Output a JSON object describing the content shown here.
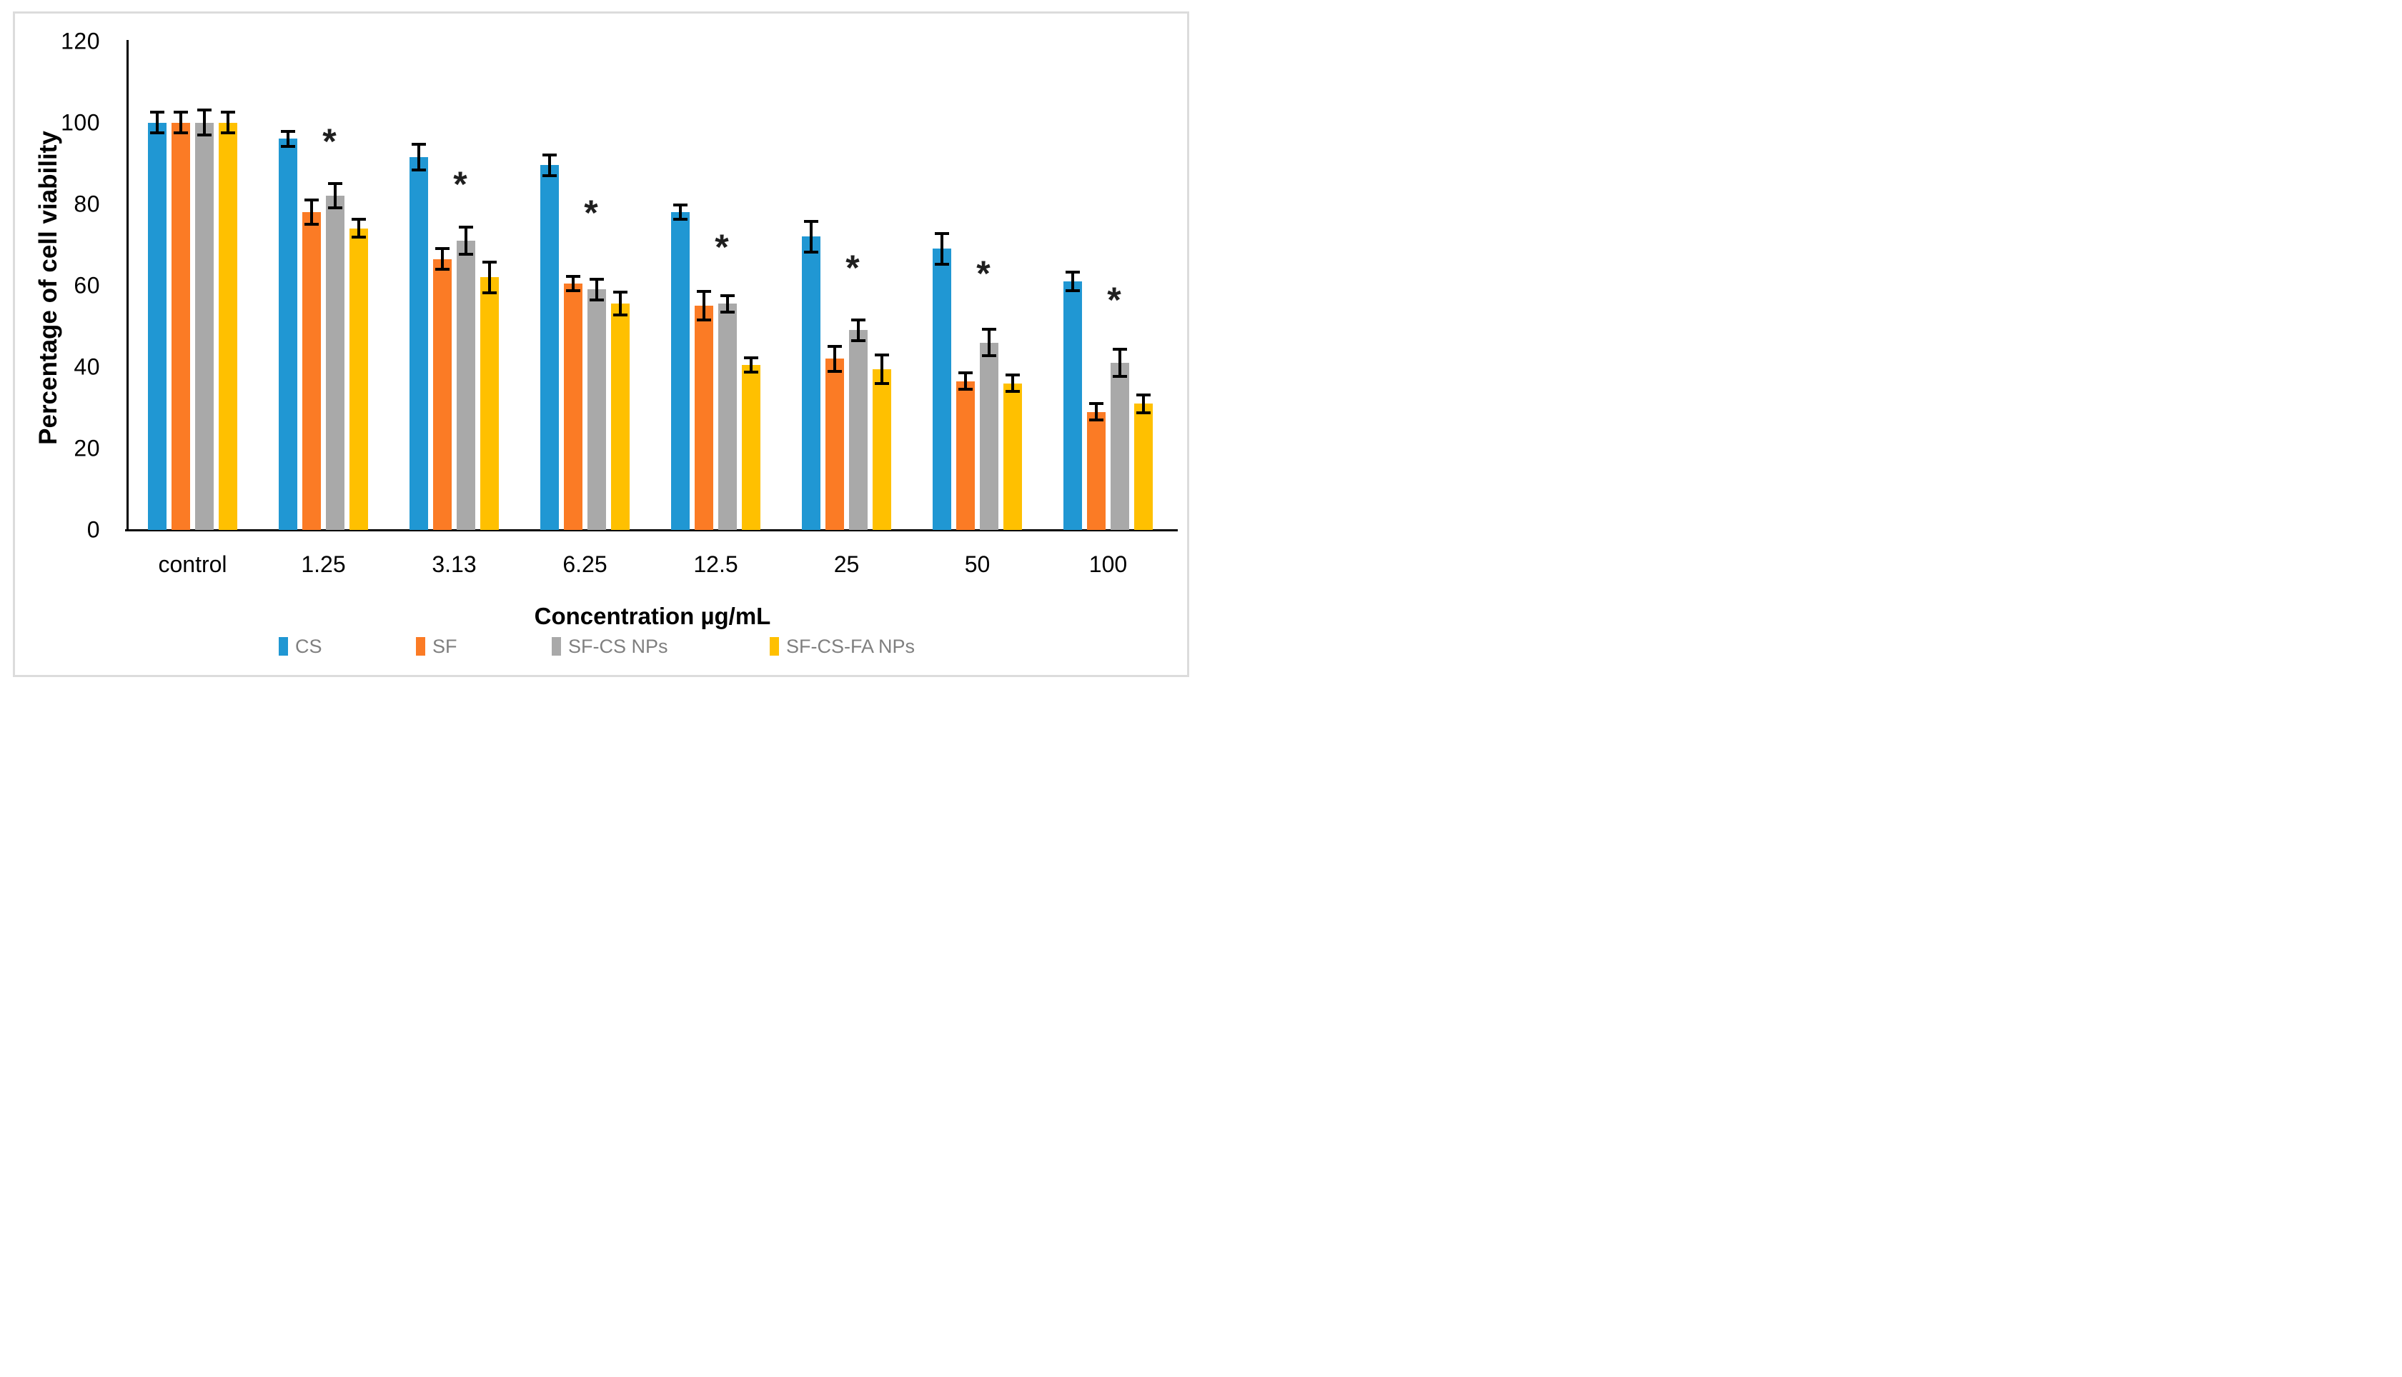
{
  "figure": {
    "background": "#ffffff",
    "border_color": "#dcdcdc",
    "axis_color": "#000000",
    "annotation_color": "#1f1f1f",
    "legend_text_color": "#7f7f7f"
  },
  "chart_data": {
    "type": "bar",
    "title": "",
    "xlabel": "Concentration µg/mL",
    "ylabel": "Percentage of cell viability",
    "ylim": [
      0,
      120
    ],
    "yticks": [
      0,
      20,
      40,
      60,
      80,
      100,
      120
    ],
    "grid": false,
    "legend_position": "bottom",
    "error_bars": true,
    "categories": [
      "control",
      "1.25",
      "3.13",
      "6.25",
      "12.5",
      "25",
      "50",
      "100"
    ],
    "series": [
      {
        "name": "CS",
        "color": "#2097d3",
        "values": [
          100,
          96,
          91.5,
          89.5,
          78,
          72,
          69,
          61
        ],
        "errors": [
          2.5,
          1.8,
          3.2,
          2.5,
          1.8,
          3.8,
          3.8,
          2.3
        ]
      },
      {
        "name": "SF",
        "color": "#fb7b25",
        "values": [
          100,
          78,
          66.5,
          60.5,
          55,
          42,
          36.5,
          29
        ],
        "errors": [
          2.5,
          3,
          2.5,
          1.8,
          3.5,
          3,
          2,
          2
        ]
      },
      {
        "name": "SF-CS NPs",
        "color": "#a9a9a9",
        "values": [
          100,
          82,
          71,
          59,
          55.5,
          49,
          46,
          41
        ],
        "errors": [
          3,
          3,
          3.3,
          2.5,
          2,
          2.5,
          3.2,
          3.3
        ]
      },
      {
        "name": "SF-CS-FA NPs",
        "color": "#ffc000",
        "values": [
          100,
          74,
          62,
          55.5,
          40.5,
          39.5,
          36,
          31
        ],
        "errors": [
          2.5,
          2.2,
          3.8,
          2.8,
          1.8,
          3.5,
          2,
          2.2
        ]
      }
    ],
    "annotations": {
      "symbol": "*",
      "over_series": "SF-CS NPs",
      "entries": [
        {
          "category": "1.25",
          "y": 97
        },
        {
          "category": "3.13",
          "y": 86.5
        },
        {
          "category": "6.25",
          "y": 79.5
        },
        {
          "category": "12.5",
          "y": 71
        },
        {
          "category": "25",
          "y": 66
        },
        {
          "category": "50",
          "y": 64.5
        },
        {
          "category": "100",
          "y": 58
        }
      ]
    },
    "legend": [
      "CS",
      "SF",
      "SF-CS NPs",
      "SF-CS-FA NPs"
    ]
  }
}
